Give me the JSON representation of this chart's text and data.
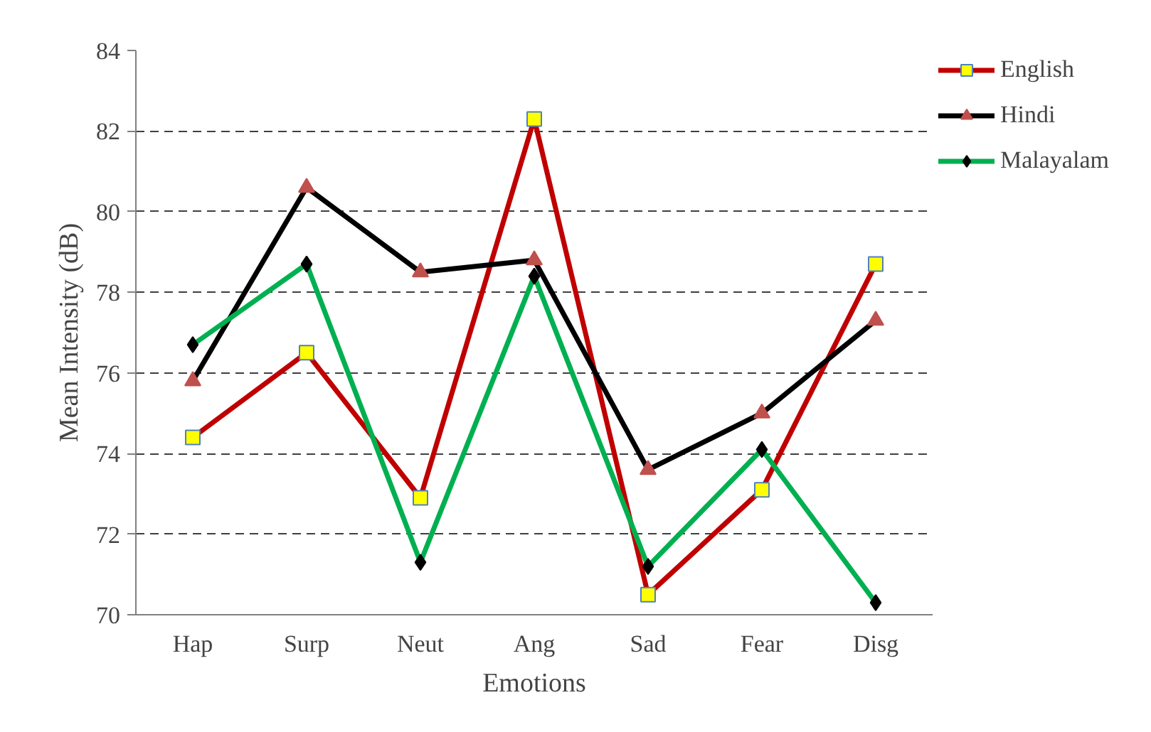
{
  "chart_data": {
    "type": "line",
    "xlabel": "Emotions",
    "ylabel": "Mean Intensity (dB)",
    "categories": [
      "Hap",
      "Surp",
      "Neut",
      "Ang",
      "Sad",
      "Fear",
      "Disg"
    ],
    "series": [
      {
        "name": "English",
        "color": "#c00000",
        "marker": "square",
        "values": [
          74.4,
          76.5,
          72.9,
          82.3,
          70.5,
          73.1,
          78.7
        ]
      },
      {
        "name": "Hindi",
        "color": "#000000",
        "marker": "triangle",
        "values": [
          75.8,
          80.6,
          78.5,
          78.8,
          73.6,
          75.0,
          77.3
        ]
      },
      {
        "name": "Malayalam",
        "color": "#00b050",
        "marker": "diamond",
        "values": [
          76.7,
          78.7,
          71.3,
          78.4,
          71.2,
          74.1,
          70.3
        ]
      }
    ],
    "ylim": [
      70,
      84
    ],
    "yticks": [
      70,
      72,
      74,
      76,
      78,
      80,
      82,
      84
    ],
    "grid": "y",
    "legend": "top right",
    "line_style": "solid"
  }
}
